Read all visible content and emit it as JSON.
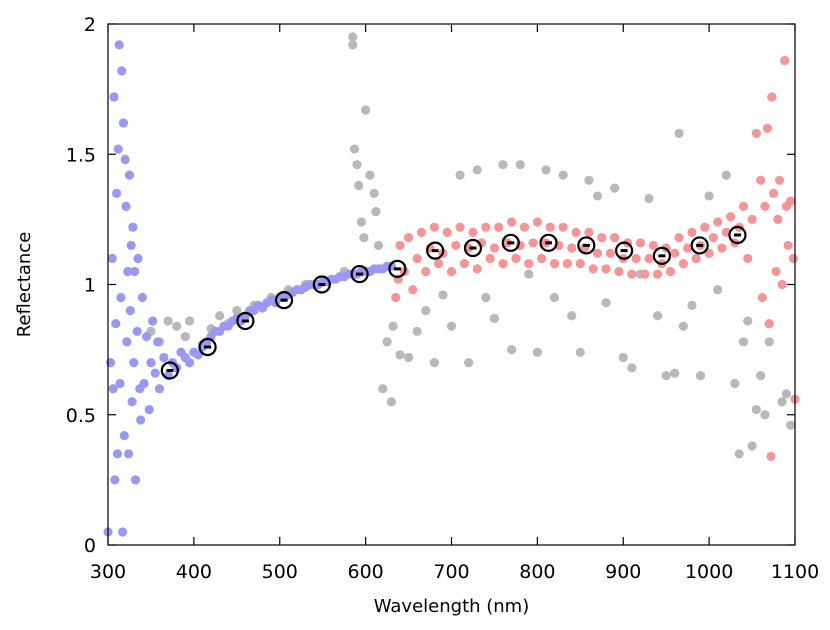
{
  "chart_data": {
    "type": "scatter",
    "title": "",
    "xlabel": "Wavelength (nm)",
    "ylabel": "Reflectance",
    "xlim": [
      300,
      1100
    ],
    "ylim": [
      0,
      2
    ],
    "xticks": [
      "300",
      "400",
      "500",
      "600",
      "700",
      "800",
      "900",
      "1000",
      "1100"
    ],
    "yticks": [
      "0",
      "0.5",
      "1",
      "1.5",
      "2"
    ],
    "grid": false,
    "legend": "none",
    "colors": {
      "gray": "#b8b8b8",
      "blue": "#9999f5",
      "red": "#f79494",
      "marker": "#000000"
    },
    "series": [
      {
        "color": "gray",
        "description_of_points": "background scatter of individual spectra",
        "points": [
          [
            350,
            0.82
          ],
          [
            360,
            0.78
          ],
          [
            370,
            0.86
          ],
          [
            380,
            0.84
          ],
          [
            390,
            0.8
          ],
          [
            395,
            0.86
          ],
          [
            400,
            0.74
          ],
          [
            410,
            0.77
          ],
          [
            420,
            0.83
          ],
          [
            430,
            0.88
          ],
          [
            440,
            0.85
          ],
          [
            450,
            0.9
          ],
          [
            470,
            0.92
          ],
          [
            490,
            0.95
          ],
          [
            510,
            0.98
          ],
          [
            530,
            1.0
          ],
          [
            560,
            1.02
          ],
          [
            575,
            1.05
          ],
          [
            585,
            1.95
          ],
          [
            585,
            1.92
          ],
          [
            587,
            1.52
          ],
          [
            590,
            1.46
          ],
          [
            592,
            1.38
          ],
          [
            595,
            1.24
          ],
          [
            598,
            1.18
          ],
          [
            600,
            1.67
          ],
          [
            605,
            1.42
          ],
          [
            610,
            1.35
          ],
          [
            612,
            1.28
          ],
          [
            615,
            1.15
          ],
          [
            620,
            0.6
          ],
          [
            625,
            0.78
          ],
          [
            630,
            0.55
          ],
          [
            632,
            0.84
          ],
          [
            640,
            0.73
          ],
          [
            650,
            0.72
          ],
          [
            660,
            0.82
          ],
          [
            670,
            0.9
          ],
          [
            680,
            0.7
          ],
          [
            690,
            0.96
          ],
          [
            700,
            0.84
          ],
          [
            710,
            1.42
          ],
          [
            720,
            0.7
          ],
          [
            730,
            1.44
          ],
          [
            740,
            0.95
          ],
          [
            750,
            0.87
          ],
          [
            760,
            1.46
          ],
          [
            770,
            0.75
          ],
          [
            780,
            1.46
          ],
          [
            790,
            1.04
          ],
          [
            800,
            0.74
          ],
          [
            810,
            1.44
          ],
          [
            820,
            0.95
          ],
          [
            830,
            1.42
          ],
          [
            840,
            0.88
          ],
          [
            850,
            0.74
          ],
          [
            860,
            1.4
          ],
          [
            870,
            1.34
          ],
          [
            880,
            0.93
          ],
          [
            890,
            1.37
          ],
          [
            900,
            0.72
          ],
          [
            910,
            0.68
          ],
          [
            920,
            1.04
          ],
          [
            930,
            1.33
          ],
          [
            940,
            0.88
          ],
          [
            950,
            0.65
          ],
          [
            960,
            0.66
          ],
          [
            965,
            1.58
          ],
          [
            970,
            0.84
          ],
          [
            980,
            0.92
          ],
          [
            990,
            0.65
          ],
          [
            1000,
            1.34
          ],
          [
            1010,
            0.98
          ],
          [
            1020,
            1.42
          ],
          [
            1030,
            0.62
          ],
          [
            1035,
            0.35
          ],
          [
            1040,
            0.78
          ],
          [
            1045,
            0.86
          ],
          [
            1050,
            0.38
          ],
          [
            1055,
            0.52
          ],
          [
            1060,
            0.65
          ],
          [
            1065,
            0.5
          ],
          [
            1070,
            0.78
          ],
          [
            1085,
            0.55
          ],
          [
            1090,
            0.58
          ],
          [
            1095,
            0.46
          ]
        ]
      },
      {
        "color": "blue",
        "description_of_points": "ultraviolet / blue band spectra",
        "points": [
          [
            300,
            0.05
          ],
          [
            303,
            0.7
          ],
          [
            305,
            1.1
          ],
          [
            306,
            0.6
          ],
          [
            307,
            1.72
          ],
          [
            308,
            0.25
          ],
          [
            309,
            0.85
          ],
          [
            310,
            1.35
          ],
          [
            311,
            0.35
          ],
          [
            312,
            1.52
          ],
          [
            313,
            1.92
          ],
          [
            314,
            0.62
          ],
          [
            315,
            0.95
          ],
          [
            316,
            1.82
          ],
          [
            317,
            0.05
          ],
          [
            318,
            1.62
          ],
          [
            319,
            0.42
          ],
          [
            320,
            1.48
          ],
          [
            321,
            1.3
          ],
          [
            322,
            0.78
          ],
          [
            323,
            1.05
          ],
          [
            324,
            0.35
          ],
          [
            325,
            1.42
          ],
          [
            326,
            0.9
          ],
          [
            327,
            1.15
          ],
          [
            328,
            0.55
          ],
          [
            329,
            1.22
          ],
          [
            330,
            0.7
          ],
          [
            331,
            1.05
          ],
          [
            332,
            0.25
          ],
          [
            334,
            0.82
          ],
          [
            335,
            1.1
          ],
          [
            337,
            0.6
          ],
          [
            338,
            0.48
          ],
          [
            340,
            0.95
          ],
          [
            342,
            0.62
          ],
          [
            345,
            0.8
          ],
          [
            348,
            0.52
          ],
          [
            350,
            0.7
          ],
          [
            352,
            0.86
          ],
          [
            355,
            0.66
          ],
          [
            358,
            0.78
          ],
          [
            360,
            0.6
          ],
          [
            365,
            0.72
          ],
          [
            370,
            0.65
          ],
          [
            375,
            0.7
          ],
          [
            380,
            0.68
          ],
          [
            385,
            0.74
          ],
          [
            390,
            0.72
          ],
          [
            395,
            0.7
          ],
          [
            400,
            0.74
          ],
          [
            405,
            0.73
          ],
          [
            410,
            0.76
          ],
          [
            415,
            0.78
          ],
          [
            420,
            0.8
          ],
          [
            425,
            0.82
          ],
          [
            430,
            0.82
          ],
          [
            435,
            0.84
          ],
          [
            440,
            0.84
          ],
          [
            445,
            0.86
          ],
          [
            450,
            0.87
          ],
          [
            455,
            0.86
          ],
          [
            460,
            0.88
          ],
          [
            465,
            0.9
          ],
          [
            470,
            0.9
          ],
          [
            475,
            0.92
          ],
          [
            480,
            0.91
          ],
          [
            485,
            0.93
          ],
          [
            490,
            0.94
          ],
          [
            495,
            0.93
          ],
          [
            500,
            0.95
          ],
          [
            505,
            0.95
          ],
          [
            510,
            0.96
          ],
          [
            515,
            0.97
          ],
          [
            520,
            0.98
          ],
          [
            525,
            0.98
          ],
          [
            530,
            0.99
          ],
          [
            535,
            1.0
          ],
          [
            540,
            1.0
          ],
          [
            545,
            1.0
          ],
          [
            550,
            1.01
          ],
          [
            555,
            1.01
          ],
          [
            560,
            1.02
          ],
          [
            565,
            1.02
          ],
          [
            570,
            1.03
          ],
          [
            575,
            1.03
          ],
          [
            580,
            1.04
          ],
          [
            585,
            1.04
          ],
          [
            590,
            1.04
          ],
          [
            595,
            1.05
          ],
          [
            600,
            1.05
          ],
          [
            605,
            1.05
          ],
          [
            610,
            1.06
          ],
          [
            615,
            1.06
          ],
          [
            620,
            1.06
          ],
          [
            625,
            1.07
          ],
          [
            630,
            1.07
          ]
        ]
      },
      {
        "color": "red",
        "description_of_points": "visible / near-infrared band spectra",
        "points": [
          [
            635,
            0.95
          ],
          [
            638,
            1.02
          ],
          [
            640,
            1.15
          ],
          [
            645,
            1.05
          ],
          [
            650,
            1.18
          ],
          [
            655,
            0.98
          ],
          [
            660,
            1.1
          ],
          [
            665,
            1.2
          ],
          [
            670,
            1.05
          ],
          [
            675,
            1.14
          ],
          [
            680,
            1.22
          ],
          [
            685,
            1.08
          ],
          [
            690,
            1.12
          ],
          [
            695,
            1.2
          ],
          [
            700,
            1.05
          ],
          [
            705,
            1.15
          ],
          [
            710,
            1.22
          ],
          [
            715,
            1.08
          ],
          [
            720,
            1.14
          ],
          [
            725,
            1.2
          ],
          [
            730,
            1.06
          ],
          [
            735,
            1.16
          ],
          [
            740,
            1.22
          ],
          [
            745,
            1.1
          ],
          [
            750,
            1.14
          ],
          [
            755,
            1.22
          ],
          [
            760,
            1.08
          ],
          [
            765,
            1.16
          ],
          [
            770,
            1.24
          ],
          [
            775,
            1.1
          ],
          [
            780,
            1.15
          ],
          [
            785,
            1.22
          ],
          [
            790,
            1.08
          ],
          [
            795,
            1.16
          ],
          [
            800,
            1.24
          ],
          [
            805,
            1.1
          ],
          [
            810,
            1.16
          ],
          [
            815,
            1.22
          ],
          [
            820,
            1.08
          ],
          [
            825,
            1.15
          ],
          [
            830,
            1.22
          ],
          [
            835,
            1.08
          ],
          [
            840,
            1.14
          ],
          [
            845,
            1.2
          ],
          [
            850,
            1.08
          ],
          [
            855,
            1.14
          ],
          [
            860,
            1.2
          ],
          [
            865,
            1.06
          ],
          [
            870,
            1.12
          ],
          [
            875,
            1.18
          ],
          [
            880,
            1.06
          ],
          [
            885,
            1.12
          ],
          [
            890,
            1.18
          ],
          [
            895,
            1.05
          ],
          [
            900,
            1.1
          ],
          [
            905,
            1.16
          ],
          [
            910,
            1.04
          ],
          [
            915,
            1.1
          ],
          [
            920,
            1.16
          ],
          [
            925,
            1.04
          ],
          [
            930,
            1.1
          ],
          [
            935,
            1.15
          ],
          [
            940,
            1.04
          ],
          [
            945,
            1.08
          ],
          [
            950,
            1.14
          ],
          [
            955,
            1.05
          ],
          [
            960,
            1.12
          ],
          [
            965,
            1.18
          ],
          [
            970,
            1.08
          ],
          [
            975,
            1.14
          ],
          [
            980,
            1.2
          ],
          [
            985,
            1.1
          ],
          [
            990,
            1.15
          ],
          [
            995,
            1.22
          ],
          [
            1000,
            1.12
          ],
          [
            1005,
            1.18
          ],
          [
            1010,
            1.24
          ],
          [
            1015,
            1.14
          ],
          [
            1020,
            1.2
          ],
          [
            1025,
            1.26
          ],
          [
            1030,
            1.16
          ],
          [
            1035,
            1.22
          ],
          [
            1040,
            1.3
          ],
          [
            1045,
            1.1
          ],
          [
            1050,
            1.25
          ],
          [
            1055,
            1.58
          ],
          [
            1060,
            1.4
          ],
          [
            1062,
            0.95
          ],
          [
            1065,
            1.3
          ],
          [
            1068,
            1.6
          ],
          [
            1070,
            0.85
          ],
          [
            1072,
            0.34
          ],
          [
            1073,
            1.72
          ],
          [
            1075,
            1.35
          ],
          [
            1078,
            1.05
          ],
          [
            1080,
            1.25
          ],
          [
            1082,
            1.4
          ],
          [
            1085,
            1.0
          ],
          [
            1088,
            1.86
          ],
          [
            1090,
            1.3
          ],
          [
            1092,
            1.15
          ],
          [
            1095,
            1.32
          ],
          [
            1098,
            1.1
          ],
          [
            1100,
            0.56
          ]
        ]
      }
    ],
    "mean_markers": {
      "x": [
        372,
        416,
        460,
        505,
        549,
        593,
        637,
        681,
        725,
        769,
        813,
        857,
        901,
        945,
        989,
        1033
      ],
      "y": [
        0.67,
        0.76,
        0.86,
        0.94,
        1.0,
        1.04,
        1.06,
        1.13,
        1.14,
        1.16,
        1.16,
        1.15,
        1.13,
        1.11,
        1.15,
        1.19
      ]
    }
  }
}
